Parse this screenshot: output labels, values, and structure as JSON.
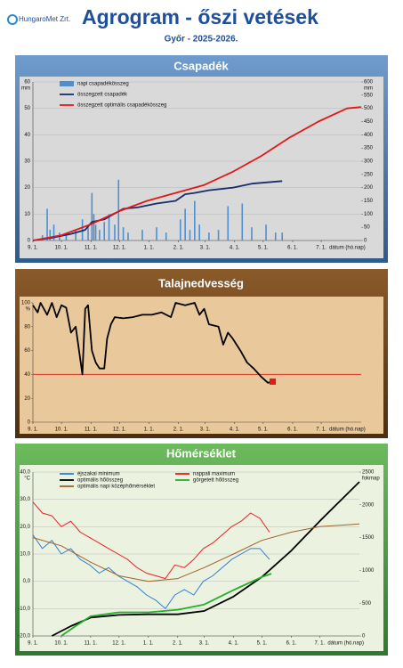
{
  "header": {
    "logo": "HungaroMet Zrt.",
    "title": "Agrogram - őszi vetések",
    "subtitle": "Győr - 2025-2026."
  },
  "chart_data": [
    {
      "type": "bar-line",
      "title": "Csapadék",
      "y_unit": "mm",
      "y2_unit": "mm",
      "x_label": "dátum (hó.nap)",
      "xlim": [
        0,
        345
      ],
      "xticks": [
        {
          "value": 0,
          "label": "9. 1."
        },
        {
          "value": 30,
          "label": "10. 1."
        },
        {
          "value": 61,
          "label": "11. 1."
        },
        {
          "value": 91,
          "label": "12. 1."
        },
        {
          "value": 122,
          "label": "1. 1."
        },
        {
          "value": 153,
          "label": "2. 1."
        },
        {
          "value": 181,
          "label": "3. 1."
        },
        {
          "value": 212,
          "label": "4. 1."
        },
        {
          "value": 242,
          "label": "5. 1."
        },
        {
          "value": 273,
          "label": "6. 1."
        },
        {
          "value": 303,
          "label": "7. 1."
        }
      ],
      "ylim": [
        0,
        60
      ],
      "yticks": [
        0,
        10,
        20,
        30,
        40,
        50,
        60
      ],
      "y2lim": [
        0,
        600
      ],
      "y2ticks": [
        0,
        50,
        100,
        150,
        200,
        250,
        300,
        350,
        400,
        450,
        500,
        550,
        600
      ],
      "grid": true,
      "legend_columns": 1,
      "series": [
        {
          "name": "napi csapadékösszeg",
          "color": "#4f8fd0",
          "mark": "bar",
          "x": [
            10,
            15,
            18,
            22,
            28,
            35,
            45,
            52,
            58,
            62,
            64,
            66,
            70,
            75,
            80,
            86,
            90,
            95,
            100,
            115,
            130,
            140,
            155,
            160,
            165,
            170,
            175,
            185,
            195,
            205,
            220,
            230,
            245,
            255,
            262
          ],
          "values": [
            2,
            12,
            4,
            6,
            3,
            2,
            4,
            8,
            5,
            18,
            10,
            6,
            4,
            7,
            10,
            6,
            23,
            5,
            3,
            4,
            5,
            3,
            8,
            12,
            4,
            15,
            6,
            3,
            4,
            13,
            14,
            5,
            6,
            3,
            3
          ]
        },
        {
          "name": "összegzett csapadék",
          "color": "#1a2d6b",
          "mark": "line",
          "axis": "y2",
          "x": [
            0,
            20,
            40,
            55,
            62,
            75,
            85,
            95,
            110,
            130,
            150,
            160,
            170,
            185,
            210,
            230,
            262
          ],
          "values": [
            0,
            10,
            25,
            40,
            70,
            80,
            100,
            120,
            125,
            140,
            150,
            175,
            180,
            190,
            200,
            215,
            225
          ]
        },
        {
          "name": "összegzett optimális csapadékösszeg",
          "color": "#e01818",
          "mark": "line",
          "axis": "y2",
          "x": [
            0,
            30,
            60,
            90,
            120,
            150,
            180,
            210,
            240,
            270,
            300,
            330,
            345
          ],
          "values": [
            0,
            20,
            60,
            110,
            150,
            180,
            210,
            260,
            320,
            390,
            450,
            500,
            505
          ]
        }
      ]
    },
    {
      "type": "line",
      "title": "Talajnedvesség",
      "y_unit": "%",
      "x_label": "dátum (hó.nap)",
      "xlim": [
        0,
        345
      ],
      "xticks": [
        {
          "value": 0,
          "label": "9. 1."
        },
        {
          "value": 30,
          "label": "10. 1."
        },
        {
          "value": 61,
          "label": "11. 1."
        },
        {
          "value": 91,
          "label": "12. 1."
        },
        {
          "value": 122,
          "label": "1. 1."
        },
        {
          "value": 153,
          "label": "2. 1."
        },
        {
          "value": 181,
          "label": "3. 1."
        },
        {
          "value": 212,
          "label": "4. 1."
        },
        {
          "value": 242,
          "label": "5. 1."
        },
        {
          "value": 273,
          "label": "6. 1."
        },
        {
          "value": 303,
          "label": "7. 1."
        }
      ],
      "ylim": [
        0,
        100
      ],
      "yticks": [
        0,
        20,
        40,
        60,
        80,
        100
      ],
      "grid": false,
      "threshold": 40,
      "threshold_color": "#e03020",
      "series": [
        {
          "color": "#000000",
          "mark": "line",
          "end_marker_color": "#e01818",
          "x": [
            0,
            5,
            8,
            15,
            20,
            25,
            30,
            35,
            40,
            45,
            52,
            55,
            58,
            62,
            66,
            70,
            75,
            78,
            82,
            86,
            95,
            105,
            115,
            125,
            135,
            145,
            150,
            160,
            170,
            175,
            180,
            185,
            195,
            200,
            205,
            210,
            218,
            225,
            232,
            240,
            247,
            252
          ],
          "values": [
            98,
            92,
            100,
            90,
            100,
            88,
            98,
            96,
            75,
            80,
            40,
            95,
            98,
            60,
            50,
            45,
            45,
            70,
            82,
            88,
            87,
            88,
            90,
            90,
            92,
            88,
            100,
            98,
            100,
            90,
            95,
            82,
            80,
            65,
            75,
            70,
            60,
            50,
            45,
            38,
            33,
            34
          ]
        }
      ]
    },
    {
      "type": "line",
      "title": "Hőmérséklet",
      "y_unit": "°C",
      "y2_unit": "fokmap",
      "x_label": "dátum (hó.nap)",
      "xlim": [
        0,
        345
      ],
      "xticks": [
        {
          "value": 0,
          "label": "9. 1."
        },
        {
          "value": 30,
          "label": "10. 1."
        },
        {
          "value": 61,
          "label": "11. 1."
        },
        {
          "value": 91,
          "label": "12. 1."
        },
        {
          "value": 122,
          "label": "1. 1."
        },
        {
          "value": 153,
          "label": "2. 1."
        },
        {
          "value": 181,
          "label": "3. 1."
        },
        {
          "value": 212,
          "label": "4. 1."
        },
        {
          "value": 242,
          "label": "5. 1."
        },
        {
          "value": 273,
          "label": "6. 1."
        },
        {
          "value": 303,
          "label": "7. 1."
        }
      ],
      "ylim": [
        -20,
        40
      ],
      "yticks": [
        {
          "value": -20,
          "label": "-20,0"
        },
        {
          "value": -10,
          "label": "-10,0"
        },
        {
          "value": 0,
          "label": "0,0"
        },
        {
          "value": 10,
          "label": "10,0"
        },
        {
          "value": 20,
          "label": "20,0"
        },
        {
          "value": 30,
          "label": "30,0"
        },
        {
          "value": 40,
          "label": "40,0"
        }
      ],
      "y2lim": [
        0,
        2500
      ],
      "y2ticks": [
        0,
        500,
        1000,
        1500,
        2000,
        2500
      ],
      "grid": true,
      "legend_columns": 2,
      "series": [
        {
          "name": "éjszakai minimum",
          "color": "#2f7fd0",
          "mark": "line",
          "x": [
            0,
            10,
            20,
            30,
            40,
            50,
            60,
            70,
            80,
            90,
            100,
            110,
            120,
            130,
            140,
            150,
            160,
            170,
            180,
            190,
            200,
            210,
            220,
            230,
            240,
            250
          ],
          "values": [
            17,
            12,
            15,
            10,
            12,
            8,
            6,
            3,
            5,
            2,
            0,
            -2,
            -5,
            -7,
            -10,
            -5,
            -3,
            -5,
            0,
            2,
            5,
            8,
            10,
            12,
            12,
            8
          ]
        },
        {
          "name": "nappali maximum",
          "color": "#e82020",
          "mark": "line",
          "x": [
            0,
            10,
            20,
            30,
            40,
            50,
            60,
            70,
            80,
            90,
            100,
            110,
            120,
            130,
            140,
            150,
            160,
            170,
            180,
            190,
            200,
            210,
            220,
            230,
            240,
            250
          ],
          "values": [
            29,
            25,
            24,
            20,
            22,
            18,
            16,
            14,
            12,
            10,
            8,
            5,
            3,
            2,
            1,
            6,
            5,
            8,
            12,
            14,
            17,
            20,
            22,
            25,
            23,
            18
          ]
        },
        {
          "name": "optimális hőösszeg",
          "color": "#000000",
          "mark": "line",
          "axis": "y2",
          "x": [
            20,
            40,
            61,
            91,
            122,
            153,
            181,
            212,
            242,
            273,
            303,
            345
          ],
          "values": [
            0,
            150,
            280,
            320,
            330,
            330,
            380,
            600,
            900,
            1300,
            1750,
            2350
          ]
        },
        {
          "name": "görgetett hőösszeg",
          "color": "#22b02a",
          "mark": "line",
          "axis": "y2",
          "x": [
            30,
            45,
            61,
            91,
            122,
            153,
            181,
            212,
            242,
            252
          ],
          "values": [
            0,
            150,
            300,
            360,
            360,
            400,
            480,
            700,
            900,
            950
          ]
        },
        {
          "name": "optimális napi középhőmérséklet",
          "color": "#a0602a",
          "mark": "line",
          "x": [
            0,
            30,
            61,
            91,
            122,
            153,
            181,
            212,
            242,
            273,
            303,
            345
          ],
          "values": [
            16,
            13,
            7,
            2,
            0,
            1,
            5,
            10,
            15,
            18,
            20,
            21
          ]
        }
      ]
    }
  ]
}
